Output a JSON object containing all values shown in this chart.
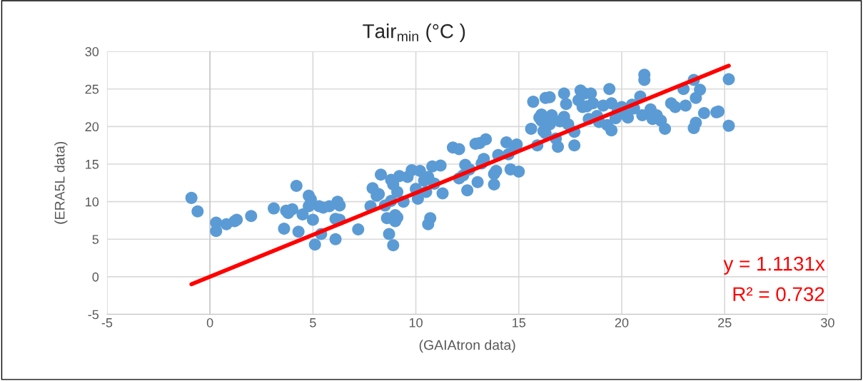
{
  "chart_data": {
    "type": "scatter",
    "title": "Tair$_{min}$ (°C )",
    "xlabel": "(GAIAtron data)",
    "ylabel": "(ERA5L data)",
    "xlim": [
      -5,
      30
    ],
    "xticks": [
      -5,
      0,
      5,
      10,
      15,
      20,
      25,
      30
    ],
    "ylim": [
      -5,
      30
    ],
    "yticks": [
      -5,
      0,
      5,
      10,
      15,
      20,
      25,
      30
    ],
    "grid": true,
    "annotations": [
      "y = 1.1131x",
      "R² = 0.732"
    ],
    "series": [
      {
        "color": "#5b9bd5",
        "marker": "circle",
        "x": [
          -0.9,
          -0.6,
          0.3,
          0.3,
          0.8,
          1.2,
          1.3,
          2.0,
          3.1,
          3.6,
          3.7,
          3.8,
          4.0,
          4.2,
          4.3,
          4.5,
          4.8,
          4.8,
          4.9,
          5.0,
          5.1,
          5.3,
          5.4,
          5.5,
          5.8,
          6.1,
          6.1,
          6.2,
          6.3,
          6.3,
          7.2,
          7.8,
          7.9,
          8.1,
          8.2,
          8.3,
          8.5,
          8.6,
          8.7,
          8.8,
          8.8,
          8.9,
          8.9,
          9.0,
          9.0,
          9.1,
          9.1,
          9.2,
          9.4,
          9.6,
          9.8,
          10.0,
          10.1,
          10.2,
          10.4,
          10.5,
          10.6,
          10.6,
          10.7,
          10.8,
          10.9,
          11.2,
          11.3,
          11.8,
          12.1,
          12.1,
          12.3,
          12.4,
          12.5,
          12.6,
          12.9,
          13.1,
          13.0,
          13.4,
          13.3,
          13.2,
          13.8,
          13.9,
          13.8,
          14.0,
          14.4,
          14.5,
          14.6,
          14.8,
          14.9,
          15.0,
          15.6,
          15.7,
          15.9,
          16.0,
          16.1,
          16.1,
          16.2,
          16.3,
          16.3,
          16.5,
          16.5,
          16.6,
          16.8,
          16.9,
          17.0,
          17.2,
          17.2,
          17.3,
          17.4,
          17.7,
          17.7,
          17.9,
          18.0,
          18.1,
          18.2,
          18.3,
          18.4,
          18.5,
          18.6,
          18.8,
          18.9,
          19.1,
          19.3,
          19.4,
          19.5,
          19.5,
          19.7,
          19.8,
          20.0,
          20.1,
          20.3,
          20.5,
          20.6,
          20.9,
          21.0,
          21.1,
          21.1,
          21.4,
          21.5,
          21.7,
          21.9,
          22.1,
          22.4,
          22.6,
          23.0,
          23.1,
          23.5,
          23.6,
          23.5,
          23.6,
          23.8,
          24.0,
          24.6,
          24.7,
          25.2,
          25.2
        ],
        "values": [
          10.5,
          8.7,
          7.2,
          6.1,
          7.0,
          7.4,
          7.6,
          8.1,
          9.1,
          6.4,
          8.8,
          8.5,
          9.0,
          12.1,
          6.0,
          8.3,
          10.8,
          9.4,
          10.3,
          7.6,
          4.3,
          9.4,
          5.7,
          9.2,
          9.4,
          5.0,
          7.7,
          10.0,
          9.5,
          7.6,
          6.3,
          9.4,
          11.8,
          10.8,
          11.0,
          13.6,
          9.5,
          7.8,
          5.7,
          10.1,
          12.9,
          4.2,
          12.3,
          7.4,
          8.2,
          11.3,
          7.9,
          13.4,
          10.0,
          13.3,
          14.2,
          11.7,
          10.4,
          14.1,
          12.8,
          11.3,
          13.3,
          7.0,
          7.8,
          14.7,
          12.4,
          14.8,
          11.1,
          17.2,
          17.0,
          13.1,
          13.5,
          14.9,
          11.5,
          14.3,
          17.7,
          17.8,
          12.6,
          18.3,
          15.7,
          15.1,
          13.7,
          14.1,
          12.3,
          16.2,
          17.9,
          16.3,
          14.3,
          17.1,
          17.6,
          14.0,
          19.7,
          23.3,
          17.5,
          21.2,
          20.8,
          21.6,
          19.4,
          19.1,
          23.8,
          23.9,
          20.3,
          21.5,
          18.4,
          17.3,
          20.7,
          21.3,
          24.4,
          23.0,
          20.3,
          19.3,
          17.5,
          23.5,
          24.8,
          22.6,
          24.4,
          22.7,
          21.0,
          24.4,
          23.1,
          21.4,
          20.6,
          22.8,
          20.2,
          25.0,
          23.1,
          19.5,
          21.1,
          22.0,
          22.6,
          21.7,
          21.2,
          22.9,
          22.4,
          24.0,
          21.5,
          26.9,
          26.2,
          22.3,
          21.0,
          21.5,
          20.8,
          19.7,
          23.1,
          22.6,
          25.0,
          22.8,
          26.2,
          23.8,
          19.8,
          20.5,
          24.9,
          21.8,
          21.9,
          22.0,
          26.3,
          20.1
        ]
      },
      {
        "type": "line",
        "color": "#ff0000",
        "x": [
          -0.9,
          25.2
        ],
        "values": [
          -1.0,
          28.1
        ]
      }
    ]
  }
}
